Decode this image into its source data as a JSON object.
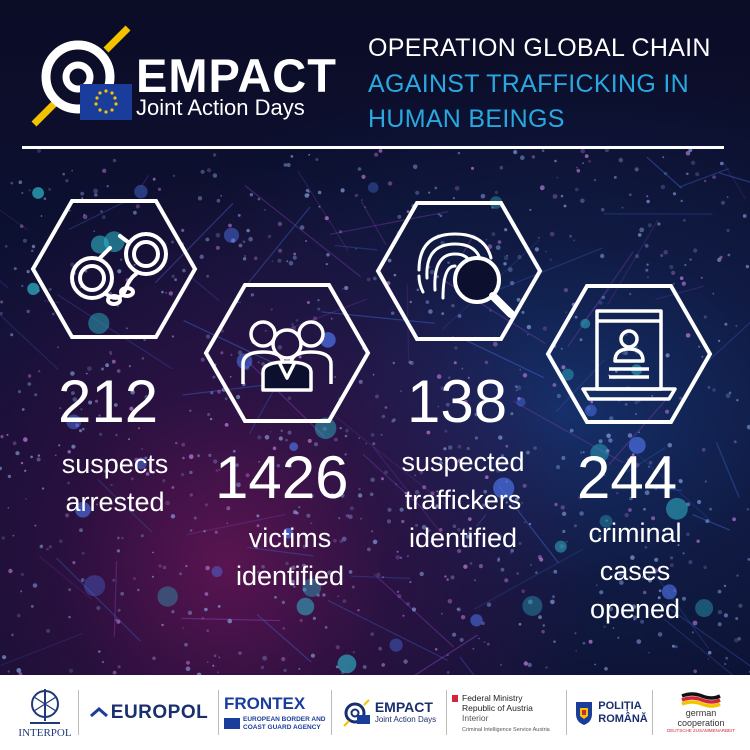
{
  "header": {
    "logo": {
      "name": "EMPACT",
      "subtitle": "Joint Action Days"
    },
    "title_line1": "OPERATION GLOBAL CHAIN",
    "title_line2": "AGAINST TRAFFICKING IN",
    "title_line3": "HUMAN BEINGS"
  },
  "stats": [
    {
      "number": "212",
      "label_lines": [
        "suspects",
        "arrested"
      ],
      "icon": "handcuffs-icon"
    },
    {
      "number": "1426",
      "label_lines": [
        "victims",
        "identified"
      ],
      "icon": "people-group-icon"
    },
    {
      "number": "138",
      "label_lines": [
        "suspected",
        "traffickers",
        "identified"
      ],
      "icon": "fingerprint-magnifier-icon"
    },
    {
      "number": "244",
      "label_lines": [
        "criminal",
        "cases",
        "opened"
      ],
      "icon": "laptop-profile-icon"
    }
  ],
  "footer": {
    "interpol": "INTERPOL",
    "europol": "EUROPOL",
    "frontex": "FRONTEX",
    "frontex_sub1": "EUROPEAN BORDER AND",
    "frontex_sub2": "COAST GUARD AGENCY",
    "empact": "EMPACT",
    "empact_sub": "Joint Action Days",
    "austria1": "Federal Ministry",
    "austria2": "Republic of Austria",
    "austria3": "Interior",
    "austria4": "Criminal Intelligence Service Austria",
    "romania1": "POLIȚIA",
    "romania2": "ROMÂNĂ",
    "giz1": "german",
    "giz2": "cooperation",
    "giz3": "DEUTSCHE ZUSAMMENARBEIT"
  },
  "colors": {
    "accent_blue": "#29a8e0",
    "logo_yellow": "#f4c300",
    "eu_blue": "#1a3d9c",
    "background": "#0c0f2e"
  }
}
